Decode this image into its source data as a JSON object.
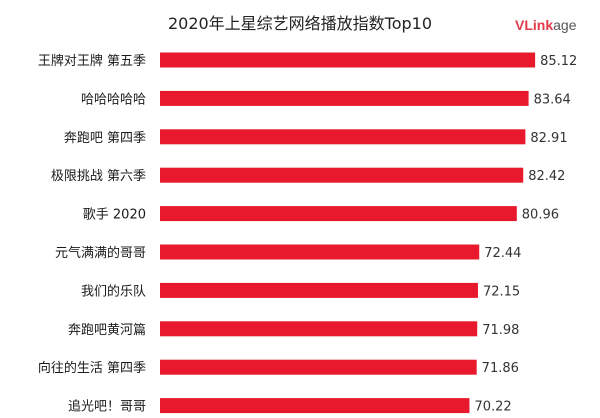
{
  "chart_data": {
    "type": "bar",
    "orientation": "horizontal",
    "title": "2020年上星综艺网络播放指数Top10",
    "categories": [
      "王牌对王牌 第五季",
      "哈哈哈哈哈",
      "奔跑吧 第四季",
      "极限挑战 第六季",
      "歌手 2020",
      "元气满满的哥哥",
      "我们的乐队",
      "奔跑吧黄河篇",
      "向往的生活 第四季",
      "追光吧！哥哥"
    ],
    "values": [
      85.12,
      83.64,
      82.91,
      82.42,
      80.96,
      72.44,
      72.15,
      71.98,
      71.86,
      70.22
    ],
    "bar_color": "#e8192c",
    "grid": false,
    "legend": "none"
  },
  "brand": {
    "part1": "V",
    "part2": "Link",
    "part3": "age",
    "primary_color": "#e23a48"
  }
}
